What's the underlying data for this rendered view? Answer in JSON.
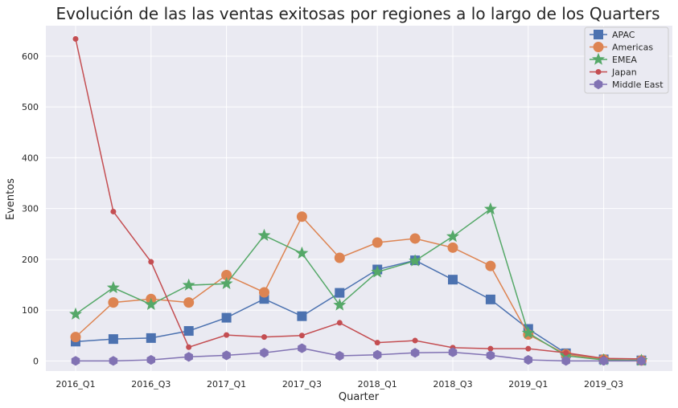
{
  "chart_data": {
    "type": "line",
    "title": "Evolución de las las ventas exitosas por regiones a lo largo de los Quarters",
    "xlabel": "Quarter",
    "ylabel": "Eventos",
    "ylim": [
      -20,
      660
    ],
    "yticks": [
      0,
      100,
      200,
      300,
      400,
      500,
      600
    ],
    "grid": true,
    "legend_position": "top-right",
    "categories": [
      "2016_Q1",
      "2016_Q2",
      "2016_Q3",
      "2016_Q4",
      "2017_Q1",
      "2017_Q2",
      "2017_Q3",
      "2017_Q4",
      "2018_Q1",
      "2018_Q2",
      "2018_Q3",
      "2018_Q4",
      "2019_Q1",
      "2019_Q2",
      "2019_Q3",
      "2019_Q4"
    ],
    "tick_labels": [
      "2016_Q1",
      "2016_Q3",
      "2017_Q1",
      "2017_Q3",
      "2018_Q1",
      "2018_Q3",
      "2019_Q1",
      "2019_Q3"
    ],
    "series": [
      {
        "name": "APAC",
        "color": "#4c72b0",
        "marker": "square",
        "values": [
          38,
          43,
          45,
          59,
          85,
          122,
          88,
          134,
          180,
          198,
          160,
          121,
          63,
          15,
          3,
          1
        ]
      },
      {
        "name": "Americas",
        "color": "#dd8452",
        "marker": "circle",
        "values": [
          47,
          115,
          122,
          115,
          169,
          135,
          284,
          203,
          233,
          241,
          223,
          187,
          52,
          13,
          3,
          1
        ]
      },
      {
        "name": "EMEA",
        "color": "#55a868",
        "marker": "star",
        "values": [
          92,
          144,
          111,
          149,
          152,
          247,
          212,
          110,
          175,
          197,
          245,
          299,
          55,
          10,
          2,
          1
        ]
      },
      {
        "name": "Japan",
        "color": "#c44e52",
        "marker": "small-circle",
        "values": [
          634,
          294,
          195,
          27,
          51,
          47,
          50,
          75,
          36,
          40,
          26,
          24,
          24,
          16,
          5,
          4
        ]
      },
      {
        "name": "Middle East",
        "color": "#8172b3",
        "marker": "hexagon",
        "values": [
          0,
          0,
          2,
          8,
          11,
          16,
          25,
          10,
          12,
          16,
          17,
          11,
          2,
          0,
          0,
          0
        ]
      }
    ]
  }
}
